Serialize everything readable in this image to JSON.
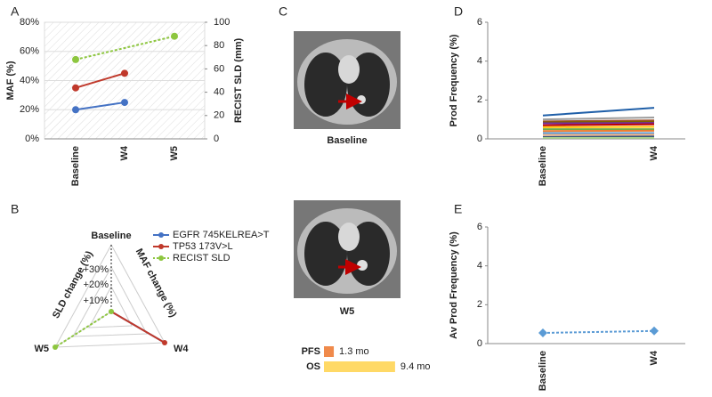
{
  "panel_labels": [
    "A",
    "B",
    "C",
    "D",
    "E"
  ],
  "chart_data": [
    {
      "type": "line",
      "categories": [
        "Baseline",
        "W4",
        "W5"
      ],
      "ylabel": "MAF (%)",
      "y2label": "RECIST SLD (mm)",
      "ylim": [
        0,
        80
      ],
      "yticks": [
        {
          "value": 0,
          "label": "0%"
        },
        {
          "value": 20,
          "label": "20%"
        },
        {
          "value": 40,
          "label": "40%"
        },
        {
          "value": 60,
          "label": "60%"
        },
        {
          "value": 80,
          "label": "80%"
        }
      ],
      "y2lim": [
        0,
        100
      ],
      "y2ticks": [
        0,
        20,
        40,
        60,
        80,
        100
      ],
      "grid": true,
      "marker": "circle",
      "series": [
        {
          "name": "EGFR 745KELREA>T",
          "color": "#4472c4",
          "values": [
            20,
            25,
            null
          ]
        },
        {
          "name": "TP53 173V>L",
          "color": "#c0392b",
          "values": [
            35,
            45,
            null
          ]
        },
        {
          "name": "RECIST SLD",
          "color": "#8dc63f",
          "axis": "y2",
          "dashed": true,
          "values": [
            68,
            null,
            88
          ]
        }
      ]
    },
    {
      "type": "line",
      "categories": [
        "Baseline",
        "W4"
      ],
      "ylabel": "Prod Frequency (%)",
      "ylim": [
        0,
        6
      ],
      "yticks": [
        0,
        2,
        4,
        6
      ],
      "grid": false,
      "marker": "none",
      "series": [
        {
          "color": "#1f5fa8",
          "values": [
            1.2,
            1.6
          ]
        },
        {
          "color": "#9e9e9e",
          "values": [
            1.0,
            1.1
          ]
        },
        {
          "color": "#a0522d",
          "values": [
            0.9,
            0.95
          ]
        },
        {
          "color": "#7f6000",
          "values": [
            0.85,
            0.88
          ]
        },
        {
          "color": "#7030a0",
          "values": [
            0.8,
            0.82
          ]
        },
        {
          "color": "#c00000",
          "values": [
            0.7,
            0.75
          ]
        },
        {
          "color": "#ffc000",
          "values": [
            0.6,
            0.62
          ]
        },
        {
          "color": "#70ad47",
          "values": [
            0.5,
            0.5
          ]
        },
        {
          "color": "#ed7d31",
          "values": [
            0.4,
            0.42
          ]
        },
        {
          "color": "#5b9bd5",
          "values": [
            0.3,
            0.3
          ]
        },
        {
          "color": "#f4b183",
          "values": [
            0.2,
            0.22
          ]
        },
        {
          "color": "#264478",
          "values": [
            0.1,
            0.12
          ]
        },
        {
          "color": "#a9d18e",
          "values": [
            0.05,
            0.05
          ]
        }
      ]
    },
    {
      "type": "line",
      "categories": [
        "Baseline",
        "W4"
      ],
      "ylabel": "Av Prod Frequency (%)",
      "ylim": [
        0,
        6
      ],
      "yticks": [
        0,
        2,
        4,
        6
      ],
      "grid": false,
      "marker": "diamond",
      "series": [
        {
          "color": "#5b9bd5",
          "dashed": true,
          "values": [
            0.55,
            0.65
          ]
        }
      ]
    },
    {
      "type": "hbar",
      "categories": [
        "PFS",
        "OS"
      ],
      "values": [
        1.3,
        9.4
      ],
      "value_labels": [
        "1.3 mo",
        "9.4 mo"
      ],
      "colors": [
        "#f08a4b",
        "#ffd966"
      ]
    }
  ],
  "radar": {
    "axes": [
      "Baseline",
      "W4",
      "W5"
    ],
    "axis_titles": [
      "MAF change (%)",
      "SLD change (%)"
    ],
    "rings": [
      "+10%",
      "+20%",
      "+30%"
    ]
  },
  "scans": [
    "Baseline",
    "W5"
  ]
}
